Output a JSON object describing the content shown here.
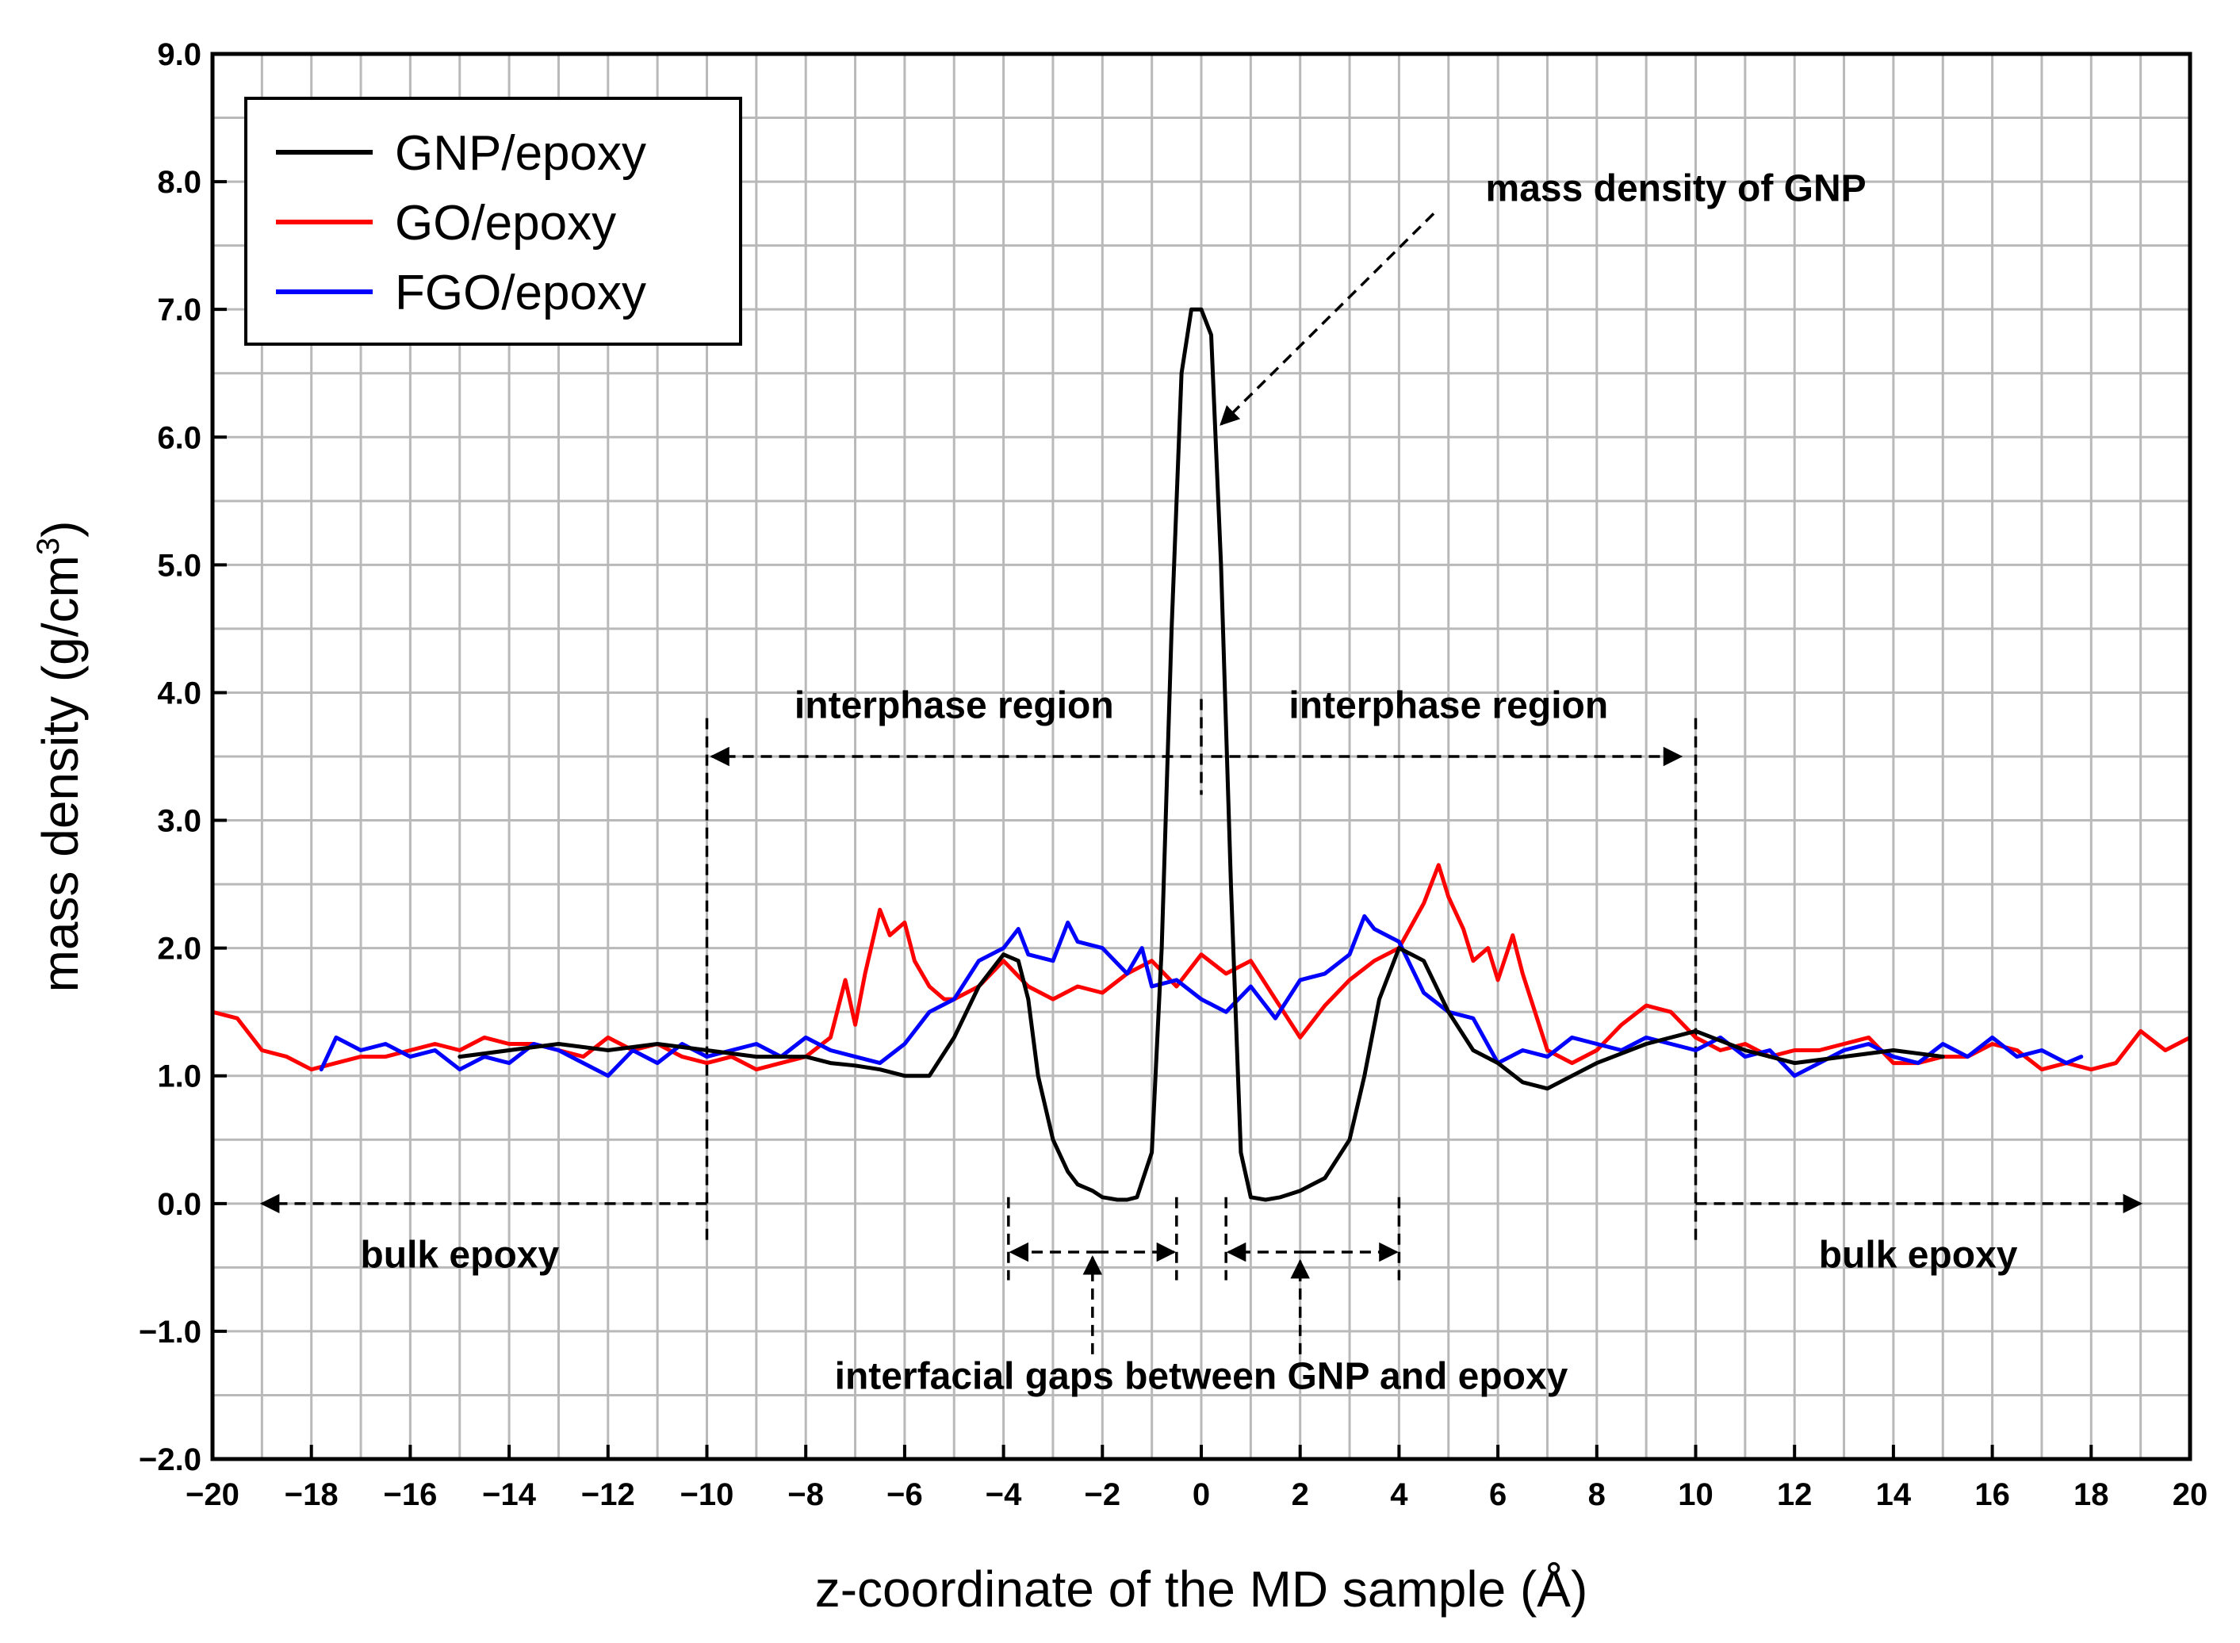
{
  "chart_data": {
    "type": "line",
    "xlabel": "z-coordinate of the MD sample (Å)",
    "ylabel": "mass density (g/cm",
    "ylabel_superscript": "3",
    "ylabel_close": ")",
    "xlim": [
      -20,
      20
    ],
    "ylim": [
      -2.0,
      9.0
    ],
    "grid": true,
    "legend_position": "top-left",
    "x_ticks": [
      -20,
      -18,
      -16,
      -14,
      -12,
      -10,
      -8,
      -6,
      -4,
      -2,
      0,
      2,
      4,
      6,
      8,
      10,
      12,
      14,
      16,
      18,
      20
    ],
    "x_tick_labels": [
      "−20",
      "−18",
      "−16",
      "−14",
      "−12",
      "−10",
      "−8",
      "−6",
      "−4",
      "−2",
      "0",
      "2",
      "4",
      "6",
      "8",
      "10",
      "12",
      "14",
      "16",
      "18",
      "20"
    ],
    "y_ticks": [
      -2,
      -1,
      0,
      1,
      2,
      3,
      4,
      5,
      6,
      7,
      8,
      9
    ],
    "y_tick_labels": [
      "−2.0",
      "−1.0",
      "0.0",
      "1.0",
      "2.0",
      "3.0",
      "4.0",
      "5.0",
      "6.0",
      "7.0",
      "8.0",
      "9.0"
    ],
    "series": [
      {
        "name": "GNP/epoxy",
        "color": "#000000",
        "x": [
          -15.0,
          -14.0,
          -13.0,
          -12.0,
          -11.0,
          -10.0,
          -9.0,
          -8.0,
          -7.5,
          -7.0,
          -6.5,
          -6.0,
          -5.5,
          -5.0,
          -4.5,
          -4.0,
          -3.7,
          -3.5,
          -3.3,
          -3.0,
          -2.7,
          -2.5,
          -2.2,
          -2.0,
          -1.7,
          -1.5,
          -1.3,
          -1.0,
          -0.8,
          -0.6,
          -0.4,
          -0.2,
          0.0,
          0.2,
          0.4,
          0.6,
          0.8,
          1.0,
          1.3,
          1.6,
          2.0,
          2.5,
          3.0,
          3.3,
          3.6,
          4.0,
          4.5,
          5.0,
          5.5,
          6.0,
          6.5,
          7.0,
          7.5,
          8.0,
          9.0,
          10.0,
          11.0,
          12.0,
          13.0,
          14.0,
          15.0
        ],
        "y": [
          1.15,
          1.2,
          1.25,
          1.2,
          1.25,
          1.2,
          1.15,
          1.15,
          1.1,
          1.08,
          1.05,
          1.0,
          1.0,
          1.3,
          1.7,
          1.95,
          1.9,
          1.6,
          1.0,
          0.5,
          0.25,
          0.15,
          0.1,
          0.05,
          0.03,
          0.03,
          0.05,
          0.4,
          2.0,
          4.5,
          6.5,
          7.0,
          7.0,
          6.8,
          5.0,
          2.5,
          0.4,
          0.05,
          0.03,
          0.05,
          0.1,
          0.2,
          0.5,
          1.0,
          1.6,
          2.0,
          1.9,
          1.5,
          1.2,
          1.1,
          0.95,
          0.9,
          1.0,
          1.1,
          1.25,
          1.35,
          1.2,
          1.1,
          1.15,
          1.2,
          1.15
        ]
      },
      {
        "name": "GO/epoxy",
        "color": "#ff0000",
        "x": [
          -20.0,
          -19.5,
          -19.0,
          -18.5,
          -18.0,
          -17.5,
          -17.0,
          -16.5,
          -16.0,
          -15.5,
          -15.0,
          -14.5,
          -14.0,
          -13.5,
          -13.0,
          -12.5,
          -12.0,
          -11.5,
          -11.0,
          -10.5,
          -10.0,
          -9.5,
          -9.0,
          -8.5,
          -8.0,
          -7.5,
          -7.2,
          -7.0,
          -6.8,
          -6.5,
          -6.3,
          -6.0,
          -5.8,
          -5.5,
          -5.2,
          -5.0,
          -4.5,
          -4.0,
          -3.5,
          -3.0,
          -2.5,
          -2.0,
          -1.5,
          -1.0,
          -0.5,
          0.0,
          0.5,
          1.0,
          1.5,
          2.0,
          2.5,
          3.0,
          3.5,
          4.0,
          4.5,
          4.8,
          5.0,
          5.3,
          5.5,
          5.8,
          6.0,
          6.3,
          6.5,
          7.0,
          7.5,
          8.0,
          8.5,
          9.0,
          9.5,
          10.0,
          10.5,
          11.0,
          11.5,
          12.0,
          12.5,
          13.0,
          13.5,
          14.0,
          14.5,
          15.0,
          15.5,
          16.0,
          16.5,
          17.0,
          17.5,
          18.0,
          18.5,
          19.0,
          19.5,
          20.0
        ],
        "y": [
          1.5,
          1.45,
          1.2,
          1.15,
          1.05,
          1.1,
          1.15,
          1.15,
          1.2,
          1.25,
          1.2,
          1.3,
          1.25,
          1.25,
          1.2,
          1.15,
          1.3,
          1.2,
          1.25,
          1.15,
          1.1,
          1.15,
          1.05,
          1.1,
          1.15,
          1.3,
          1.75,
          1.4,
          1.8,
          2.3,
          2.1,
          2.2,
          1.9,
          1.7,
          1.6,
          1.6,
          1.7,
          1.9,
          1.7,
          1.6,
          1.7,
          1.65,
          1.8,
          1.9,
          1.7,
          1.95,
          1.8,
          1.9,
          1.6,
          1.3,
          1.55,
          1.75,
          1.9,
          2.0,
          2.35,
          2.65,
          2.4,
          2.15,
          1.9,
          2.0,
          1.75,
          2.1,
          1.8,
          1.2,
          1.1,
          1.2,
          1.4,
          1.55,
          1.5,
          1.3,
          1.2,
          1.25,
          1.15,
          1.2,
          1.2,
          1.25,
          1.3,
          1.1,
          1.1,
          1.15,
          1.15,
          1.25,
          1.2,
          1.05,
          1.1,
          1.05,
          1.1,
          1.35,
          1.2,
          1.3
        ]
      },
      {
        "name": "FGO/epoxy",
        "color": "#0000ff",
        "x": [
          -17.8,
          -17.5,
          -17.0,
          -16.5,
          -16.0,
          -15.5,
          -15.0,
          -14.5,
          -14.0,
          -13.5,
          -13.0,
          -12.5,
          -12.0,
          -11.5,
          -11.0,
          -10.5,
          -10.0,
          -9.5,
          -9.0,
          -8.5,
          -8.0,
          -7.5,
          -7.0,
          -6.5,
          -6.0,
          -5.5,
          -5.0,
          -4.5,
          -4.0,
          -3.7,
          -3.5,
          -3.0,
          -2.7,
          -2.5,
          -2.0,
          -1.5,
          -1.2,
          -1.0,
          -0.5,
          0.0,
          0.5,
          1.0,
          1.5,
          2.0,
          2.5,
          3.0,
          3.3,
          3.5,
          4.0,
          4.5,
          5.0,
          5.5,
          6.0,
          6.5,
          7.0,
          7.5,
          8.0,
          8.5,
          9.0,
          9.5,
          10.0,
          10.5,
          11.0,
          11.5,
          12.0,
          12.5,
          13.0,
          13.5,
          14.0,
          14.5,
          15.0,
          15.5,
          16.0,
          16.5,
          17.0,
          17.5,
          17.8
        ],
        "y": [
          1.05,
          1.3,
          1.2,
          1.25,
          1.15,
          1.2,
          1.05,
          1.15,
          1.1,
          1.25,
          1.2,
          1.1,
          1.0,
          1.2,
          1.1,
          1.25,
          1.15,
          1.2,
          1.25,
          1.15,
          1.3,
          1.2,
          1.15,
          1.1,
          1.25,
          1.5,
          1.6,
          1.9,
          2.0,
          2.15,
          1.95,
          1.9,
          2.2,
          2.05,
          2.0,
          1.8,
          2.0,
          1.7,
          1.75,
          1.6,
          1.5,
          1.7,
          1.45,
          1.75,
          1.8,
          1.95,
          2.25,
          2.15,
          2.05,
          1.65,
          1.5,
          1.45,
          1.1,
          1.2,
          1.15,
          1.3,
          1.25,
          1.2,
          1.3,
          1.25,
          1.2,
          1.3,
          1.15,
          1.2,
          1.0,
          1.1,
          1.2,
          1.25,
          1.15,
          1.1,
          1.25,
          1.15,
          1.3,
          1.15,
          1.2,
          1.1,
          1.15
        ]
      }
    ],
    "annotations": [
      {
        "text": "mass density of GNP",
        "x": 0.2,
        "y": 6.0
      },
      {
        "text": "interphase region",
        "x": -5.0,
        "y": 3.8
      },
      {
        "text": "interphase region",
        "x": 5.0,
        "y": 3.8
      },
      {
        "text": "bulk epoxy",
        "x": -15.0,
        "y": -0.5
      },
      {
        "text": "bulk epoxy",
        "x": 14.5,
        "y": -0.5
      },
      {
        "text": "interfacial gaps between GNP and epoxy",
        "x": 0.0,
        "y": -1.45
      }
    ]
  }
}
